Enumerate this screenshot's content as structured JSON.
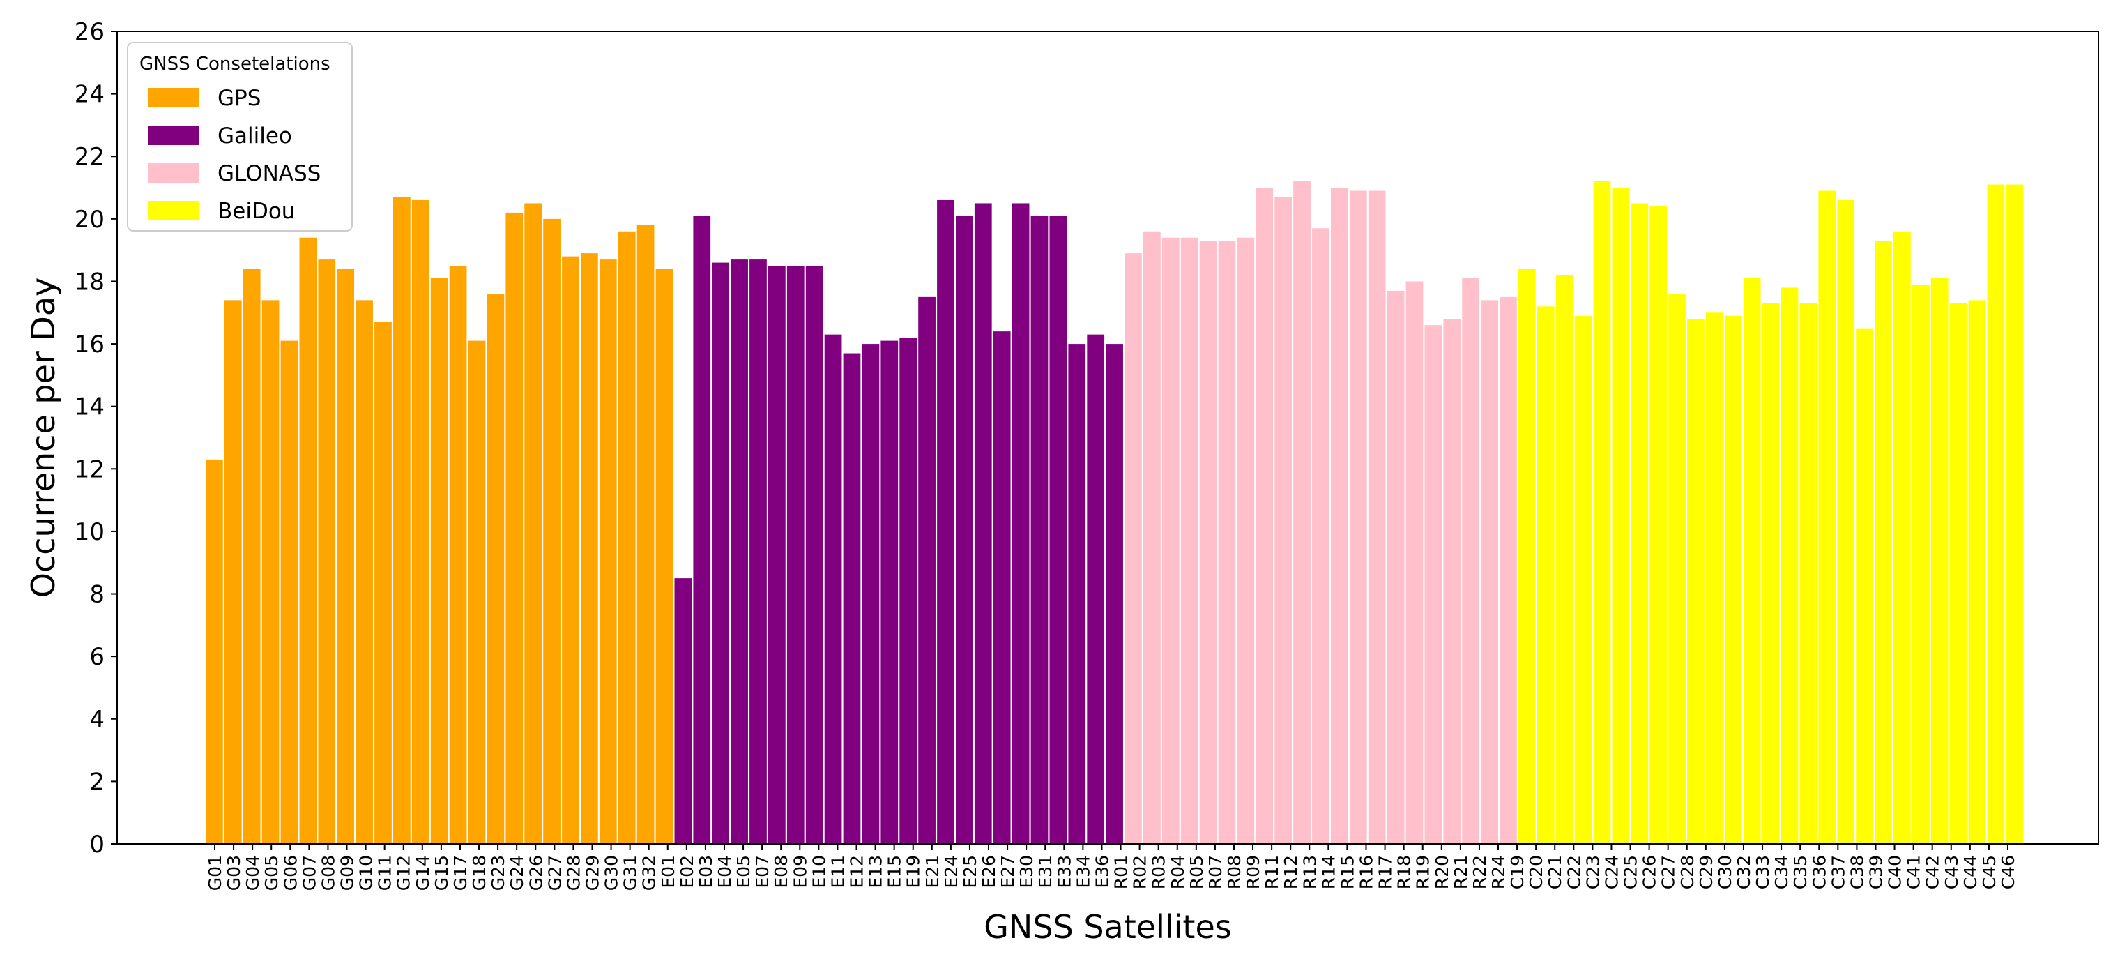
{
  "chart_data": {
    "type": "bar",
    "title": "",
    "xlabel": "GNSS Satellites",
    "ylabel": "Occurrence per Day",
    "ylim": [
      0,
      26
    ],
    "yticks": [
      0,
      2,
      4,
      6,
      8,
      10,
      12,
      14,
      16,
      18,
      20,
      22,
      24,
      26
    ],
    "grid": false,
    "legend": {
      "title": "GNSS Consetelations",
      "placement": "top-left",
      "entries": [
        {
          "name": "GPS",
          "color": "#FFA500"
        },
        {
          "name": "Galileo",
          "color": "#800080"
        },
        {
          "name": "GLONASS",
          "color": "#FFC0CB"
        },
        {
          "name": "BeiDou",
          "color": "#FFFF00"
        }
      ]
    },
    "series": [
      {
        "name": "GPS",
        "color": "#FFA500",
        "categories": [
          "G01",
          "G03",
          "G04",
          "G05",
          "G06",
          "G07",
          "G08",
          "G09",
          "G10",
          "G11",
          "G12",
          "G14",
          "G15",
          "G17",
          "G18",
          "G23",
          "G24",
          "G26",
          "G27",
          "G28",
          "G29",
          "G30",
          "G31",
          "G32"
        ],
        "values": [
          12.3,
          17.4,
          18.4,
          17.4,
          16.1,
          19.4,
          18.7,
          18.4,
          17.4,
          16.7,
          20.7,
          20.6,
          18.1,
          18.5,
          16.1,
          17.6,
          20.2,
          20.5,
          20.0,
          18.8,
          18.9,
          18.7,
          19.6,
          19.8
        ],
        "extra_value": 18.4
      },
      {
        "name": "Galileo",
        "color": "#800080",
        "categories": [
          "E01",
          "E02",
          "E03",
          "E04",
          "E05",
          "E07",
          "E08",
          "E09",
          "E10",
          "E11",
          "E12",
          "E13",
          "E15",
          "E19",
          "E21",
          "E24",
          "E25",
          "E26",
          "E27",
          "E30",
          "E31",
          "E33",
          "E34",
          "E36"
        ],
        "values": [
          8.5,
          20.1,
          18.6,
          18.7,
          18.7,
          18.5,
          18.5,
          18.5,
          16.3,
          15.7,
          16.0,
          16.1,
          16.2,
          17.5,
          20.6,
          20.1,
          20.5,
          16.4,
          20.5,
          20.1,
          20.1,
          16.0,
          16.3,
          16.0
        ]
      },
      {
        "name": "GLONASS",
        "color": "#FFC0CB",
        "categories": [
          "R01",
          "R02",
          "R03",
          "R04",
          "R05",
          "R07",
          "R08",
          "R09",
          "R11",
          "R12",
          "R13",
          "R14",
          "R15",
          "R16",
          "R17",
          "R18",
          "R19",
          "R20",
          "R21",
          "R22",
          "R24"
        ],
        "values": [
          18.9,
          19.6,
          19.4,
          19.4,
          19.3,
          19.3,
          19.4,
          21.0,
          20.7,
          21.2,
          19.7,
          21.0,
          20.9,
          20.9,
          17.7,
          18.0,
          16.6,
          16.8,
          18.1,
          17.4,
          17.5
        ]
      },
      {
        "name": "BeiDou",
        "color": "#FFFF00",
        "categories": [
          "C19",
          "C20",
          "C21",
          "C22",
          "C23",
          "C24",
          "C25",
          "C26",
          "C27",
          "C28",
          "C29",
          "C30",
          "C32",
          "C33",
          "C34",
          "C35",
          "C36",
          "C37",
          "C38",
          "C39",
          "C40",
          "C41",
          "C42",
          "C43",
          "C44",
          "C45",
          "C46"
        ],
        "values": [
          18.4,
          17.2,
          18.2,
          16.9,
          21.2,
          21.0,
          20.5,
          20.4,
          17.6,
          16.8,
          17.0,
          16.9,
          18.1,
          17.3,
          17.8,
          17.3,
          20.9,
          20.6,
          16.5,
          19.3,
          19.6,
          17.9,
          18.1,
          17.3,
          17.4,
          21.1,
          21.1
        ]
      }
    ]
  }
}
